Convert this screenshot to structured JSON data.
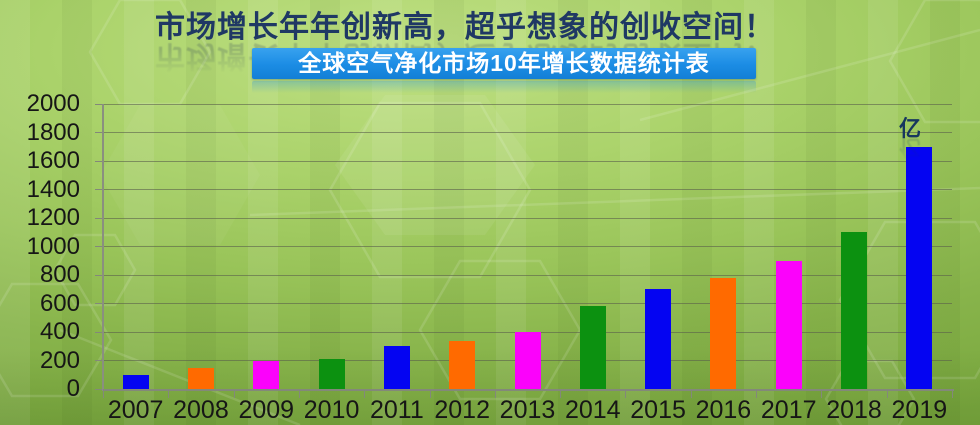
{
  "slide": {
    "title": "市场增长年年创新高，超乎想象的创收空间！",
    "banner": "全球空气净化市场10年增长数据统计表"
  },
  "chart_data": {
    "type": "bar",
    "title": "全球空气净化市场10年增长数据统计表",
    "categories": [
      "2007",
      "2008",
      "2009",
      "2010",
      "2011",
      "2012",
      "2013",
      "2014",
      "2015",
      "2016",
      "2017",
      "2018",
      "2019"
    ],
    "values": [
      100,
      150,
      200,
      210,
      300,
      340,
      400,
      580,
      700,
      780,
      900,
      1100,
      1700
    ],
    "unit": "亿",
    "xlabel": "",
    "ylabel": "",
    "ylim": [
      0,
      2000
    ],
    "ytick_step": 200,
    "grid": true,
    "legend": false,
    "bar_colors_cycle": [
      "#0404f2",
      "#ff6a00",
      "#fb02fb",
      "#0c9110"
    ]
  },
  "colors": {
    "title_text": "#1f3864",
    "banner_bg": "#1b8ce4",
    "banner_text": "#ffffff",
    "axis_text": "#161616",
    "gridline": "#8b8f7d",
    "background_green": "#99c459"
  }
}
